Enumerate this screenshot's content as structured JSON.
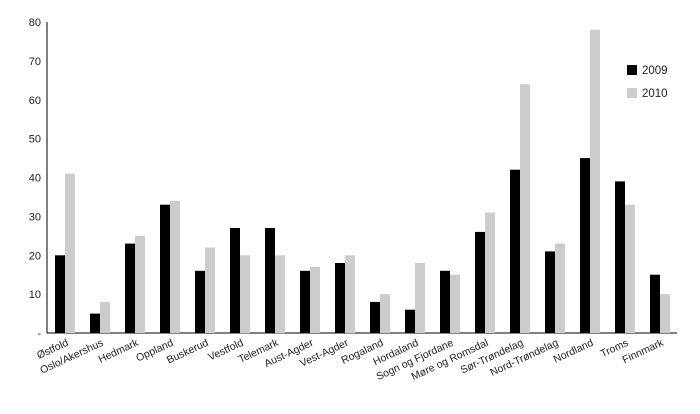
{
  "chart_data": {
    "type": "bar",
    "categories": [
      "Østfold",
      "Oslo/Akershus",
      "Hedmark",
      "Oppland",
      "Buskerud",
      "Vestfold",
      "Telemark",
      "Aust-Agder",
      "Vest-Agder",
      "Rogaland",
      "Hordaland",
      "Sogn og Fjordane",
      "Møre og Romsdal",
      "Sør-Trøndelag",
      "Nord-Trøndelag",
      "Nordland",
      "Troms",
      "Finnmark"
    ],
    "series": [
      {
        "name": "2009",
        "color": "#000000",
        "values": [
          20,
          5,
          23,
          33,
          16,
          27,
          27,
          16,
          18,
          8,
          6,
          16,
          26,
          42,
          21,
          45,
          39,
          15
        ]
      },
      {
        "name": "2010",
        "color": "#cccccc",
        "values": [
          41,
          8,
          25,
          34,
          22,
          20,
          20,
          17,
          20,
          10,
          18,
          15,
          31,
          64,
          23,
          78,
          33,
          10
        ]
      }
    ],
    "ylim": [
      0,
      80
    ],
    "yticks": [
      "-",
      "10",
      "20",
      "30",
      "40",
      "50",
      "60",
      "70",
      "80"
    ],
    "xlabel": "",
    "ylabel": "",
    "title": "",
    "grid": false,
    "legend_position": "top-right"
  }
}
